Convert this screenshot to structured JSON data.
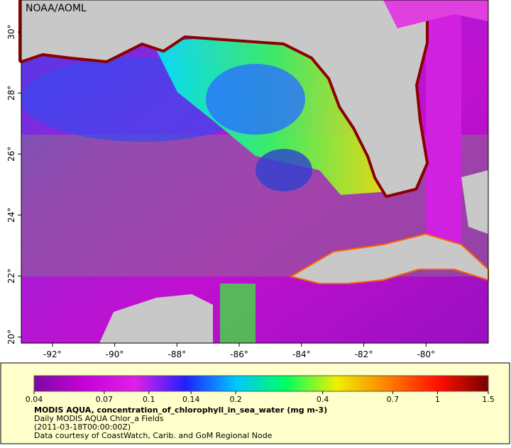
{
  "map": {
    "credit": "NOAA/AOML",
    "lonlim": [
      -93,
      -78
    ],
    "latlim": [
      19.8,
      31.05
    ],
    "lon_ticks": [
      {
        "value": -92,
        "label": "-92°"
      },
      {
        "value": -90,
        "label": "-90°"
      },
      {
        "value": -88,
        "label": "-88°"
      },
      {
        "value": -86,
        "label": "-86°"
      },
      {
        "value": -84,
        "label": "-84°"
      },
      {
        "value": -82,
        "label": "-82°"
      },
      {
        "value": -80,
        "label": "-80°"
      }
    ],
    "lat_ticks": [
      {
        "value": 20,
        "label": "20°"
      },
      {
        "value": 22,
        "label": "22°"
      },
      {
        "value": 24,
        "label": "24°"
      },
      {
        "value": 26,
        "label": "26°"
      },
      {
        "value": 28,
        "label": "28°"
      },
      {
        "value": 30,
        "label": "30°"
      }
    ]
  },
  "colorbar": {
    "log": true,
    "lim": [
      0.04,
      1.5
    ],
    "ticks": [
      0.04,
      0.07,
      0.1,
      0.14,
      0.2,
      0.4,
      0.7,
      1,
      1.5
    ],
    "colors": [
      "#7a0aa0",
      "#c800d8",
      "#e020e8",
      "#2020ff",
      "#00c8ff",
      "#00ff60",
      "#f0f000",
      "#ff8000",
      "#ff1000",
      "#7a0000"
    ]
  },
  "caption": {
    "title": "MODIS AQUA, concentration_of_chlorophyll_in_sea_water (mg m-3)",
    "line1": "Daily MODIS AQUA Chlor_a Fields",
    "line2": "(2011-03-18T00:00:00Z)",
    "line3": "Data courtesy of CoastWatch, Carib. and GoM Regional Node"
  }
}
